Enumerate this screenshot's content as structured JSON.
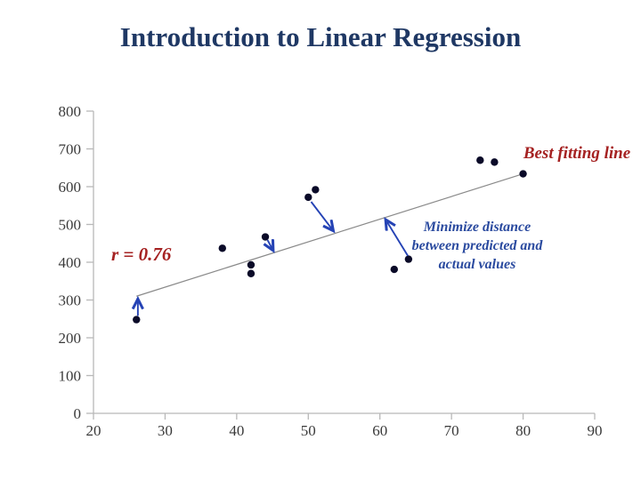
{
  "title": "Introduction to Linear Regression",
  "chart_data": {
    "type": "scatter",
    "title": "",
    "xlabel": "",
    "ylabel": "",
    "xlim": [
      20,
      90
    ],
    "ylim": [
      0,
      800
    ],
    "x_ticks": [
      20,
      30,
      40,
      50,
      60,
      70,
      80,
      90
    ],
    "y_ticks": [
      0,
      100,
      200,
      300,
      400,
      500,
      600,
      700,
      800
    ],
    "grid": false,
    "legend": "none",
    "points": [
      [
        26,
        248
      ],
      [
        38,
        437
      ],
      [
        42,
        393
      ],
      [
        42,
        370
      ],
      [
        44,
        467
      ],
      [
        50,
        572
      ],
      [
        51,
        592
      ],
      [
        62,
        381
      ],
      [
        64,
        408
      ],
      [
        74,
        670
      ],
      [
        76,
        665
      ],
      [
        80,
        634
      ]
    ],
    "best_fit_line": {
      "x1": 26,
      "y1": 310,
      "x2": 80,
      "y2": 634
    },
    "arrows": [
      {
        "from": [
          26.2,
          258
        ],
        "to": [
          26.2,
          303
        ]
      },
      {
        "from": [
          44.3,
          459
        ],
        "to": [
          45.1,
          431
        ]
      },
      {
        "from": [
          50.4,
          560
        ],
        "to": [
          53.5,
          483
        ]
      },
      {
        "from": [
          63.9,
          417
        ],
        "to": [
          60.8,
          513
        ]
      }
    ],
    "annotations": {
      "r_label": {
        "text": "r = 0.76",
        "color": "#a52222"
      },
      "best_fit_label": {
        "text": "Best fitting line",
        "color": "#a52222"
      },
      "minimize_label": {
        "text": "Minimize distance between predicted and actual values",
        "color": "#2a4a9f"
      }
    },
    "colors": {
      "title": "#1f3864",
      "point": "#0a0a28",
      "fit_line": "#8a8a8a",
      "axis": "#b8b8b8",
      "tick_label": "#3a3a3a",
      "arrow": "#2543b5"
    }
  }
}
